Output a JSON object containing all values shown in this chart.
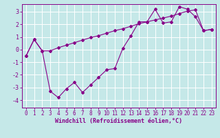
{
  "xlabel": "Windchill (Refroidissement éolien,°C)",
  "background_color": "#c5e8e8",
  "grid_color": "#add8d8",
  "line_color": "#880088",
  "xlim": [
    -0.5,
    23.5
  ],
  "ylim": [
    -4.6,
    3.6
  ],
  "yticks": [
    -4,
    -3,
    -2,
    -1,
    0,
    1,
    2,
    3
  ],
  "xticks": [
    0,
    1,
    2,
    3,
    4,
    5,
    6,
    7,
    8,
    9,
    10,
    11,
    12,
    13,
    14,
    15,
    16,
    17,
    18,
    19,
    20,
    21,
    22,
    23
  ],
  "series1_x": [
    0,
    1,
    2,
    3,
    4,
    5,
    6,
    7,
    8,
    9,
    10,
    11,
    12,
    13,
    14,
    15,
    16,
    17,
    18,
    19,
    20,
    21,
    22,
    23
  ],
  "series1_y": [
    -0.5,
    0.8,
    -0.1,
    -3.3,
    -3.8,
    -3.1,
    -2.6,
    -3.4,
    -2.8,
    -2.2,
    -1.6,
    -1.5,
    0.1,
    1.1,
    2.2,
    2.2,
    3.2,
    2.1,
    2.2,
    3.4,
    3.2,
    2.6,
    1.5,
    1.6
  ],
  "series2_x": [
    0,
    1,
    2,
    3,
    4,
    5,
    6,
    7,
    8,
    9,
    10,
    11,
    12,
    13,
    14,
    15,
    16,
    17,
    18,
    19,
    20,
    21,
    22,
    23
  ],
  "series2_y": [
    -0.5,
    0.8,
    -0.1,
    -0.1,
    0.15,
    0.35,
    0.55,
    0.75,
    0.95,
    1.1,
    1.3,
    1.5,
    1.65,
    1.85,
    2.05,
    2.2,
    2.35,
    2.5,
    2.65,
    2.85,
    3.05,
    3.15,
    1.5,
    1.6
  ],
  "tick_fontsize": 5.5,
  "xlabel_fontsize": 6.0
}
